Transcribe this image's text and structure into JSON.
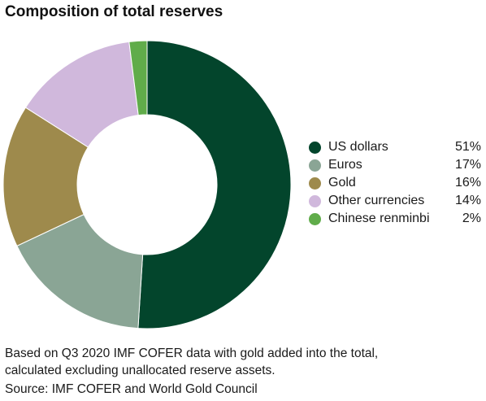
{
  "chart_data": {
    "type": "pie",
    "title": "Composition of total reserves",
    "donut": true,
    "series": [
      {
        "name": "US dollars",
        "value": 51,
        "label": "51%",
        "color": "#03452c"
      },
      {
        "name": "Euros",
        "value": 17,
        "label": "17%",
        "color": "#8aa595"
      },
      {
        "name": "Gold",
        "value": 16,
        "label": "16%",
        "color": "#9e8a4c"
      },
      {
        "name": "Other currencies",
        "value": 14,
        "label": "14%",
        "color": "#d0b8dc"
      },
      {
        "name": "Chinese renminbi",
        "value": 2,
        "label": "2%",
        "color": "#60ac4a"
      }
    ],
    "legend_position": "right"
  },
  "footnote": {
    "line1": "Based on Q3 2020 IMF COFER data with gold added into the total,",
    "line2": "calculated excluding unallocated reserve assets."
  },
  "source": "Source: IMF COFER and World Gold Council"
}
